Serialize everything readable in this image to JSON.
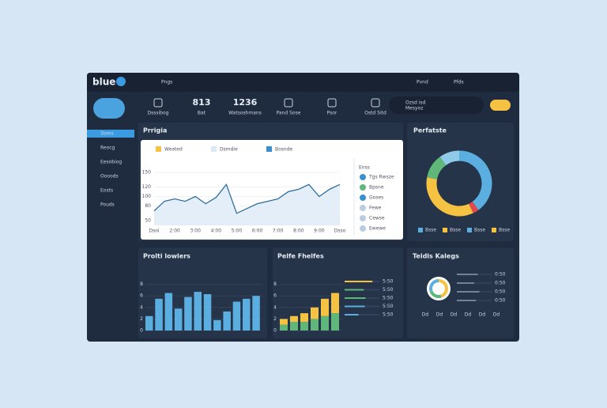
{
  "header": {
    "logo": "blue",
    "menu": "Pngs",
    "actions": [
      "Pvnd",
      "Pfds"
    ]
  },
  "stats": [
    {
      "label": "Dsssibog"
    },
    {
      "value": "813",
      "label": "Bat"
    },
    {
      "value": "1236",
      "label": "Watsoshmans"
    },
    {
      "label": "Pand Sose"
    },
    {
      "label": "Psor"
    },
    {
      "label": "Ostd Sitd"
    }
  ],
  "profile": {
    "name": "Ozsd isd",
    "detail": "Mesyoz"
  },
  "sidebar": [
    "Stees",
    "Reocg",
    "Eesobiog",
    "Oooods",
    "Eosts",
    "Pouds"
  ],
  "line_panel": {
    "title": "Prrigia",
    "legend": [
      "Weated",
      "Dsmdie",
      "Bosnde"
    ],
    "ylim": [
      40,
      160
    ],
    "yticks": [
      50,
      80,
      100,
      120,
      150
    ],
    "x_labels": [
      "Dsoi",
      "2:00",
      "3:00",
      "4:00",
      "5:00",
      "6:00",
      "7:00",
      "8:00",
      "9:00",
      "Dsso"
    ],
    "values": [
      70,
      90,
      95,
      90,
      100,
      85,
      98,
      125,
      65,
      75,
      85,
      90,
      95,
      110,
      115,
      125,
      100,
      115,
      125
    ],
    "color": "#2f6f9f",
    "list_title": "Enss",
    "list": [
      "Tgs Rwsze",
      "Bpsne",
      "Goses",
      "Fewe",
      "Cewse",
      "Ewewe"
    ]
  },
  "donut_panel": {
    "title": "Perfatste",
    "values": [
      40,
      3,
      35,
      12,
      10
    ],
    "colors": [
      "#5aaee0",
      "#e04a4a",
      "#f5c242",
      "#5fb87a",
      "#8fcbe8"
    ],
    "legend": [
      "Bsse",
      "Bsse",
      "Bsse",
      "Bsse"
    ],
    "legend_colors": [
      "#5aaee0",
      "#f5c242",
      "#5aaee0",
      "#f5c242"
    ]
  },
  "bar_panel": {
    "title": "Prolti lowlers",
    "ylim": [
      0,
      10
    ],
    "yticks": [
      0,
      2,
      4,
      6,
      8
    ],
    "values": [
      2.5,
      5.5,
      6.5,
      3.8,
      5.8,
      6.7,
      6.3,
      1.8,
      3.3,
      5,
      5.5,
      6
    ],
    "color": "#5aaee0"
  },
  "stack_panel": {
    "title": "Pelfe Fhelfes",
    "ylim": [
      0,
      10
    ],
    "yticks": [
      0,
      2,
      4,
      6,
      8
    ],
    "series": [
      {
        "color": "#5fb87a",
        "values": [
          1,
          1.5,
          1.5,
          2,
          2.5,
          3
        ]
      },
      {
        "color": "#f5c242",
        "values": [
          1,
          1,
          1.5,
          2,
          3,
          3.5
        ]
      }
    ],
    "progress_xlim": [
      0,
      100
    ],
    "progress": [
      80,
      55,
      60,
      58,
      40
    ],
    "progress_colors": [
      "#f5c242",
      "#5fb87a",
      "#5fb87a",
      "#5aaee0",
      "#5aaee0"
    ],
    "progress_labels": [
      "5:50",
      "5:50",
      "5:50",
      "5:50",
      "5:50"
    ]
  },
  "tasks_panel": {
    "title": "Teldls Kalegs",
    "donut": [
      45,
      25,
      30
    ],
    "donut_colors": [
      "#f5c242",
      "#5fb87a",
      "#5aaee0"
    ],
    "xlim": [
      0,
      100
    ],
    "progress": [
      60,
      50,
      65,
      55
    ],
    "labels": [
      "0:50",
      "0:50",
      "0:50",
      "0:50"
    ],
    "axis_labels": [
      "Dd",
      "Dd",
      "Dd",
      "Dd",
      "Dd",
      "Dd"
    ]
  }
}
